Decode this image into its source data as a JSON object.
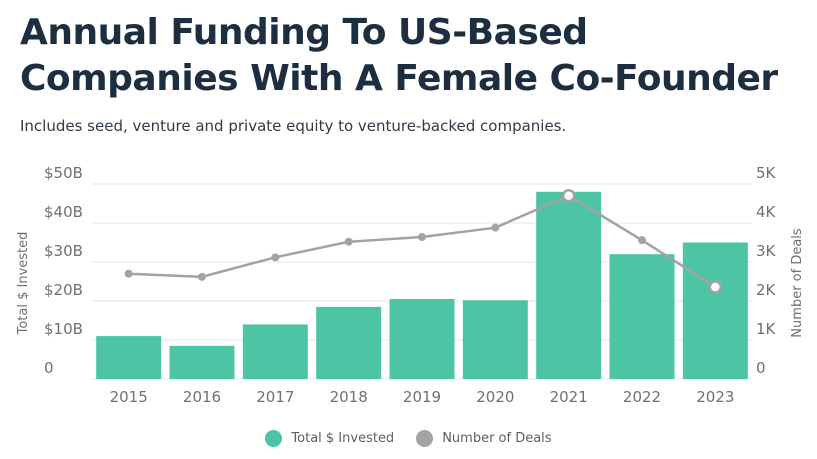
{
  "title": "Annual Funding To US-Based Companies With A Female Co-Founder",
  "subtitle": "Includes seed, venture and private equity to venture-backed companies.",
  "colors": {
    "bar": "#4dc4a4",
    "line": "#a3a3a3",
    "grid": "#e6e6e6",
    "title": "#1c2e40"
  },
  "chart_data": {
    "type": "bar",
    "categories": [
      "2015",
      "2016",
      "2017",
      "2018",
      "2019",
      "2020",
      "2021",
      "2022",
      "2023"
    ],
    "series": [
      {
        "name": "Total $ Invested",
        "type": "bar",
        "axis": "left",
        "values": [
          11,
          8.5,
          14,
          18.5,
          20.5,
          20.2,
          48,
          32,
          35
        ]
      },
      {
        "name": "Number of Deals",
        "type": "line",
        "axis": "right",
        "values": [
          2700,
          2620,
          3120,
          3520,
          3640,
          3880,
          4700,
          3560,
          2360
        ]
      }
    ],
    "ylabel": "Total $ Invested",
    "ylabel_right": "Number of Deals",
    "ylim": [
      0,
      50
    ],
    "ylim_right": [
      0,
      5000
    ],
    "yticks": [
      "0",
      "$10B",
      "$20B",
      "$30B",
      "$40B",
      "$50B"
    ],
    "yticks_right": [
      "0",
      "1K",
      "2K",
      "3K",
      "4K",
      "5K"
    ],
    "grid": true,
    "legend": "bottom-center"
  }
}
